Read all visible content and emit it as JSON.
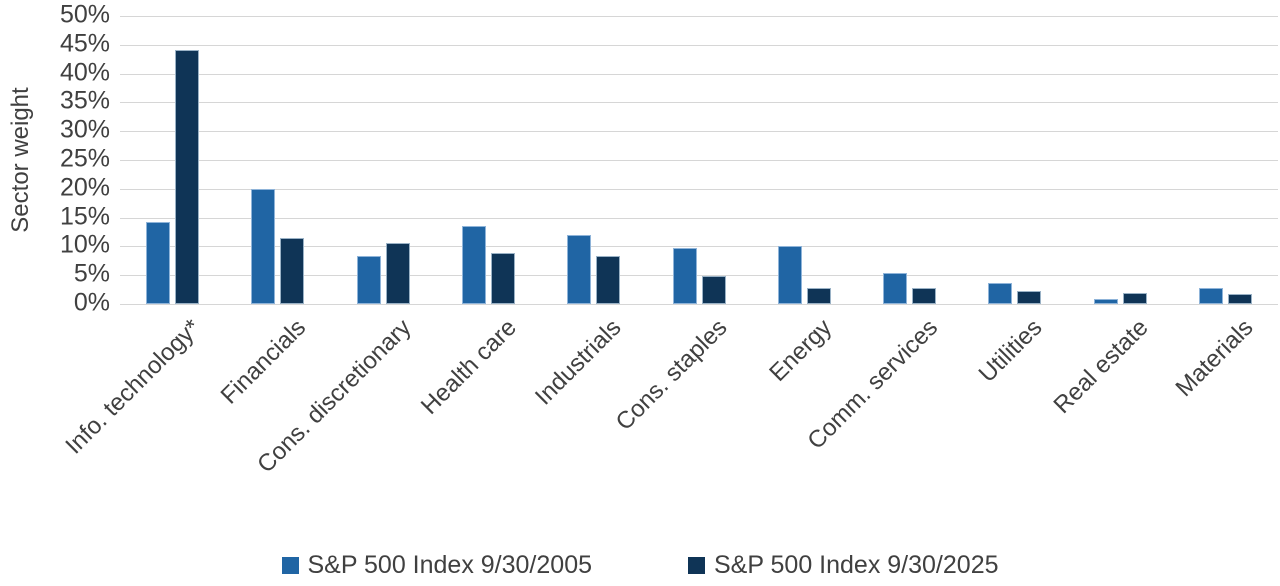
{
  "chart_data": {
    "type": "bar",
    "title": "",
    "ylabel": "Sector weight",
    "xlabel": "",
    "ylim": [
      0,
      50
    ],
    "ytick_step": 5,
    "ytick_suffix": "%",
    "grid": true,
    "legend_position": "bottom",
    "categories": [
      "Info. technology*",
      "Financials",
      "Cons. discretionary",
      "Health care",
      "Industrials",
      "Cons. staples",
      "Energy",
      "Comm. services",
      "Utilities",
      "Real estate",
      "Materials"
    ],
    "series": [
      {
        "name": "S&P 500 Index 9/30/2005",
        "color": "#2065A4",
        "values": [
          14.3,
          20.0,
          8.3,
          13.6,
          11.9,
          9.7,
          10.0,
          5.3,
          3.6,
          0.9,
          2.8
        ]
      },
      {
        "name": "S&P 500 Index 9/30/2025",
        "color": "#0F3456",
        "values": [
          44.1,
          11.5,
          10.6,
          8.9,
          8.4,
          4.9,
          2.8,
          2.8,
          2.3,
          1.9,
          1.8
        ]
      }
    ]
  },
  "colors": {
    "gridline": "#D6D6D6",
    "text": "#404040",
    "background": "#FFFFFF"
  }
}
